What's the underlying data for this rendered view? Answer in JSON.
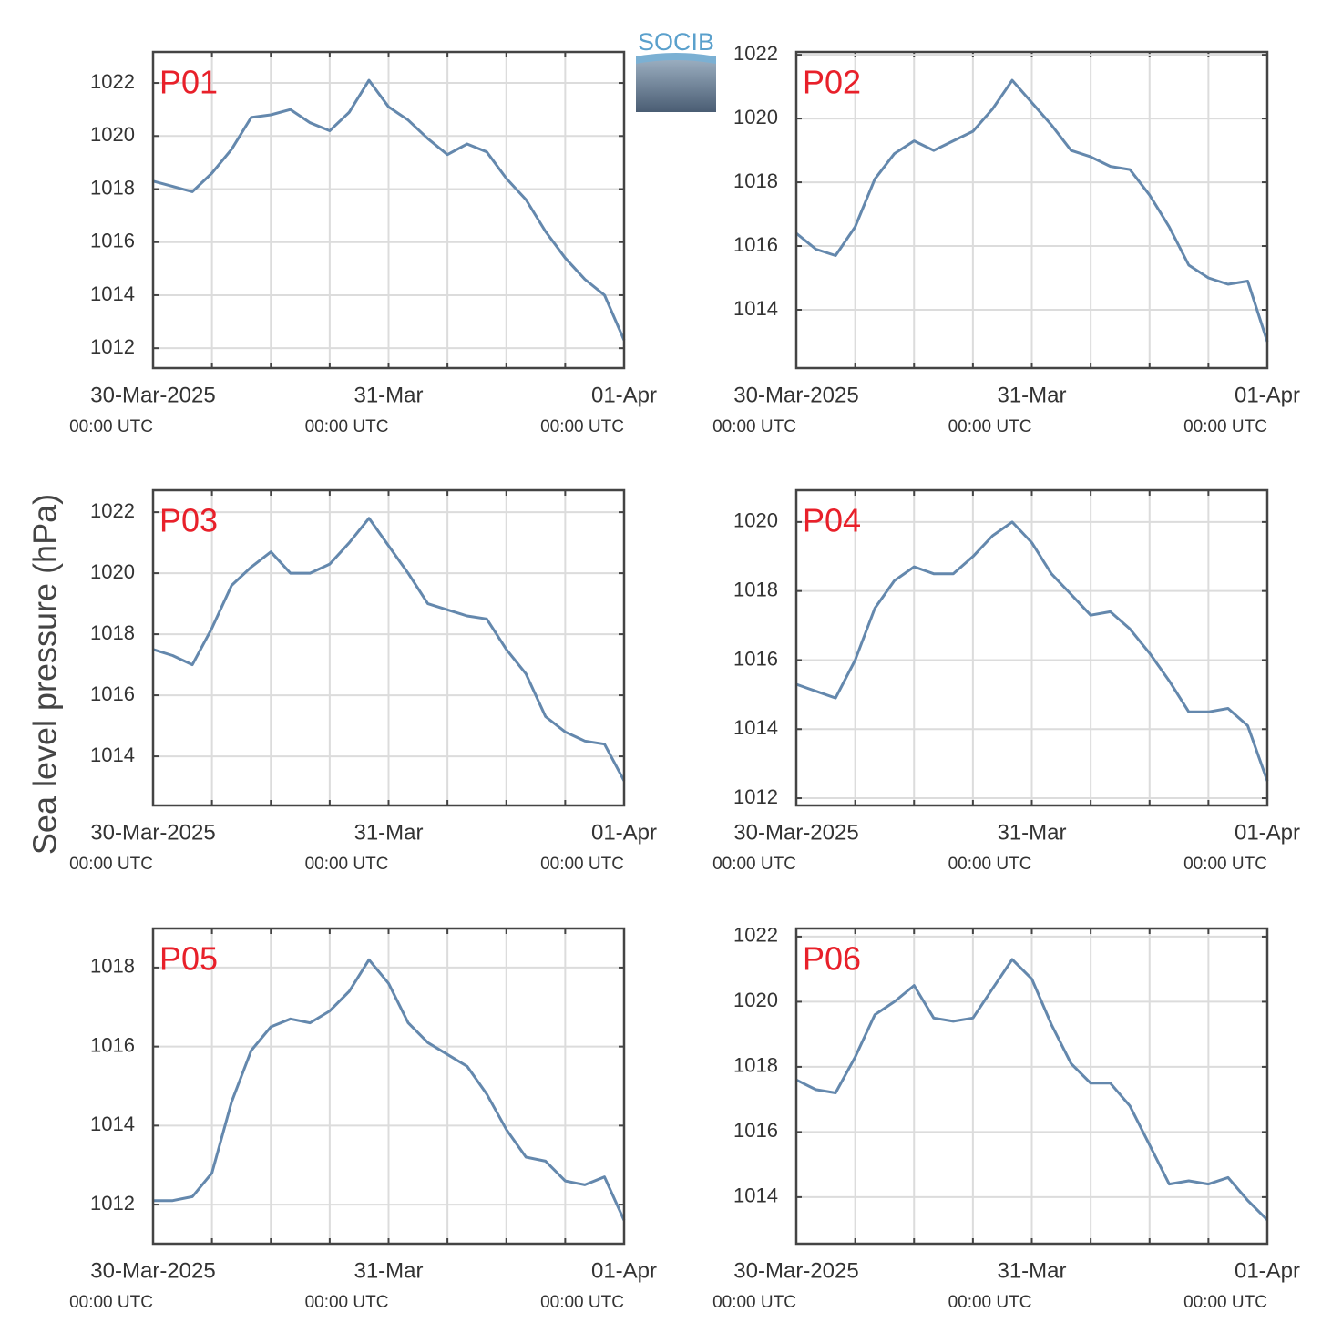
{
  "logo": "SOCIB",
  "ylabel": "Sea level pressure (hPa)",
  "chart_data": [
    {
      "type": "line",
      "title": "P01",
      "color": "#6488ad",
      "grid": true,
      "x": [
        0,
        2,
        4,
        6,
        8,
        10,
        12,
        14,
        16,
        18,
        20,
        22,
        24,
        26,
        28,
        30,
        32,
        34,
        36,
        38,
        40,
        42,
        44,
        46,
        48
      ],
      "values": [
        1018.3,
        1018.1,
        1017.9,
        1018.6,
        1019.5,
        1020.7,
        1020.8,
        1021.0,
        1020.5,
        1020.2,
        1020.9,
        1022.1,
        1021.1,
        1020.6,
        1019.9,
        1019.3,
        1019.7,
        1019.4,
        1018.4,
        1017.6,
        1016.4,
        1015.4,
        1014.6,
        1014.0,
        1012.3
      ],
      "xlim": [
        0,
        48
      ],
      "xticks": [
        {
          "value": 0,
          "label": [
            "30-Mar-2025",
            "00:00 UTC"
          ]
        },
        {
          "value": 24,
          "label": [
            "31-Mar",
            "00:00 UTC"
          ]
        },
        {
          "value": 48,
          "label": [
            "01-Apr",
            "00:00 UTC"
          ]
        }
      ],
      "xminorticks": [
        6,
        12,
        18,
        30,
        36,
        42
      ],
      "ylim": [
        1011.25,
        1023.17
      ],
      "yticks": [
        1012,
        1014,
        1016,
        1018,
        1020,
        1022
      ]
    },
    {
      "type": "line",
      "title": "P02",
      "color": "#6488ad",
      "grid": true,
      "x": [
        0,
        2,
        4,
        6,
        8,
        10,
        12,
        14,
        16,
        18,
        20,
        22,
        24,
        26,
        28,
        30,
        32,
        34,
        36,
        38,
        40,
        42,
        44,
        46,
        48
      ],
      "values": [
        1016.4,
        1015.9,
        1015.7,
        1016.6,
        1018.1,
        1018.9,
        1019.3,
        1019.0,
        1019.3,
        1019.6,
        1020.3,
        1021.2,
        1020.5,
        1019.8,
        1019.0,
        1018.8,
        1018.5,
        1018.4,
        1017.6,
        1016.6,
        1015.4,
        1015.0,
        1014.8,
        1014.9,
        1013.0
      ],
      "xlim": [
        0,
        48
      ],
      "xticks": [
        {
          "value": 0,
          "label": [
            "30-Mar-2025",
            "00:00 UTC"
          ]
        },
        {
          "value": 24,
          "label": [
            "31-Mar",
            "00:00 UTC"
          ]
        },
        {
          "value": 48,
          "label": [
            "01-Apr",
            "00:00 UTC"
          ]
        }
      ],
      "xminorticks": [
        6,
        12,
        18,
        30,
        36,
        42
      ],
      "ylim": [
        1012.17,
        1022.09
      ],
      "yticks": [
        1014,
        1016,
        1018,
        1020,
        1022
      ]
    },
    {
      "type": "line",
      "title": "P03",
      "color": "#6488ad",
      "grid": true,
      "x": [
        0,
        2,
        4,
        6,
        8,
        10,
        12,
        14,
        16,
        18,
        20,
        22,
        24,
        26,
        28,
        30,
        32,
        34,
        36,
        38,
        40,
        42,
        44,
        46,
        48
      ],
      "values": [
        1017.5,
        1017.3,
        1017.0,
        1018.2,
        1019.6,
        1020.2,
        1020.7,
        1020.0,
        1020.0,
        1020.3,
        1021.0,
        1021.8,
        1020.9,
        1020.0,
        1019.0,
        1018.8,
        1018.6,
        1018.5,
        1017.5,
        1016.7,
        1015.3,
        1014.8,
        1014.5,
        1014.4,
        1013.2
      ],
      "xlim": [
        0,
        48
      ],
      "xticks": [
        {
          "value": 0,
          "label": [
            "30-Mar-2025",
            "00:00 UTC"
          ]
        },
        {
          "value": 24,
          "label": [
            "31-Mar",
            "00:00 UTC"
          ]
        },
        {
          "value": 48,
          "label": [
            "01-Apr",
            "00:00 UTC"
          ]
        }
      ],
      "xminorticks": [
        6,
        12,
        18,
        30,
        36,
        42
      ],
      "ylim": [
        1012.39,
        1022.72
      ],
      "yticks": [
        1014,
        1016,
        1018,
        1020,
        1022
      ]
    },
    {
      "type": "line",
      "title": "P04",
      "color": "#6488ad",
      "grid": true,
      "x": [
        0,
        2,
        4,
        6,
        8,
        10,
        12,
        14,
        16,
        18,
        20,
        22,
        24,
        26,
        28,
        30,
        32,
        34,
        36,
        38,
        40,
        42,
        44,
        46,
        48
      ],
      "values": [
        1015.3,
        1015.1,
        1014.9,
        1016.0,
        1017.5,
        1018.3,
        1018.7,
        1018.5,
        1018.5,
        1019.0,
        1019.6,
        1020.0,
        1019.4,
        1018.5,
        1017.9,
        1017.3,
        1017.4,
        1016.9,
        1016.2,
        1015.4,
        1014.5,
        1014.5,
        1014.6,
        1014.1,
        1012.5
      ],
      "xlim": [
        0,
        48
      ],
      "xticks": [
        {
          "value": 0,
          "label": [
            "30-Mar-2025",
            "00:00 UTC"
          ]
        },
        {
          "value": 24,
          "label": [
            "31-Mar",
            "00:00 UTC"
          ]
        },
        {
          "value": 48,
          "label": [
            "01-Apr",
            "00:00 UTC"
          ]
        }
      ],
      "xminorticks": [
        6,
        12,
        18,
        30,
        36,
        42
      ],
      "ylim": [
        1011.79,
        1020.92
      ],
      "yticks": [
        1012,
        1014,
        1016,
        1018,
        1020
      ]
    },
    {
      "type": "line",
      "title": "P05",
      "color": "#6488ad",
      "grid": true,
      "x": [
        0,
        2,
        4,
        6,
        8,
        10,
        12,
        14,
        16,
        18,
        20,
        22,
        24,
        26,
        28,
        30,
        32,
        34,
        36,
        38,
        40,
        42,
        44,
        46,
        48
      ],
      "values": [
        1012.1,
        1012.1,
        1012.2,
        1012.8,
        1014.6,
        1015.9,
        1016.5,
        1016.7,
        1016.6,
        1016.9,
        1017.4,
        1018.2,
        1017.6,
        1016.6,
        1016.1,
        1015.8,
        1015.5,
        1014.8,
        1013.9,
        1013.2,
        1013.1,
        1012.6,
        1012.5,
        1012.7,
        1011.6
      ],
      "xlim": [
        0,
        48
      ],
      "xticks": [
        {
          "value": 0,
          "label": [
            "30-Mar-2025",
            "00:00 UTC"
          ]
        },
        {
          "value": 24,
          "label": [
            "31-Mar",
            "00:00 UTC"
          ]
        },
        {
          "value": 48,
          "label": [
            "01-Apr",
            "00:00 UTC"
          ]
        }
      ],
      "xminorticks": [
        6,
        12,
        18,
        30,
        36,
        42
      ],
      "ylim": [
        1011.01,
        1018.99
      ],
      "yticks": [
        1012,
        1014,
        1016,
        1018
      ]
    },
    {
      "type": "line",
      "title": "P06",
      "color": "#6488ad",
      "grid": true,
      "x": [
        0,
        2,
        4,
        6,
        8,
        10,
        12,
        14,
        16,
        18,
        20,
        22,
        24,
        26,
        28,
        30,
        32,
        34,
        36,
        38,
        40,
        42,
        44,
        46,
        48
      ],
      "values": [
        1017.6,
        1017.3,
        1017.2,
        1018.3,
        1019.6,
        1020.0,
        1020.5,
        1019.5,
        1019.4,
        1019.5,
        1020.4,
        1021.3,
        1020.7,
        1019.3,
        1018.1,
        1017.5,
        1017.5,
        1016.8,
        1015.6,
        1014.4,
        1014.5,
        1014.4,
        1014.6,
        1013.9,
        1013.3
      ],
      "xlim": [
        0,
        48
      ],
      "xticks": [
        {
          "value": 0,
          "label": [
            "30-Mar-2025",
            "00:00 UTC"
          ]
        },
        {
          "value": 24,
          "label": [
            "31-Mar",
            "00:00 UTC"
          ]
        },
        {
          "value": 48,
          "label": [
            "01-Apr",
            "00:00 UTC"
          ]
        }
      ],
      "xminorticks": [
        6,
        12,
        18,
        30,
        36,
        42
      ],
      "ylim": [
        1012.57,
        1022.25
      ],
      "yticks": [
        1014,
        1016,
        1018,
        1020,
        1022
      ]
    }
  ]
}
